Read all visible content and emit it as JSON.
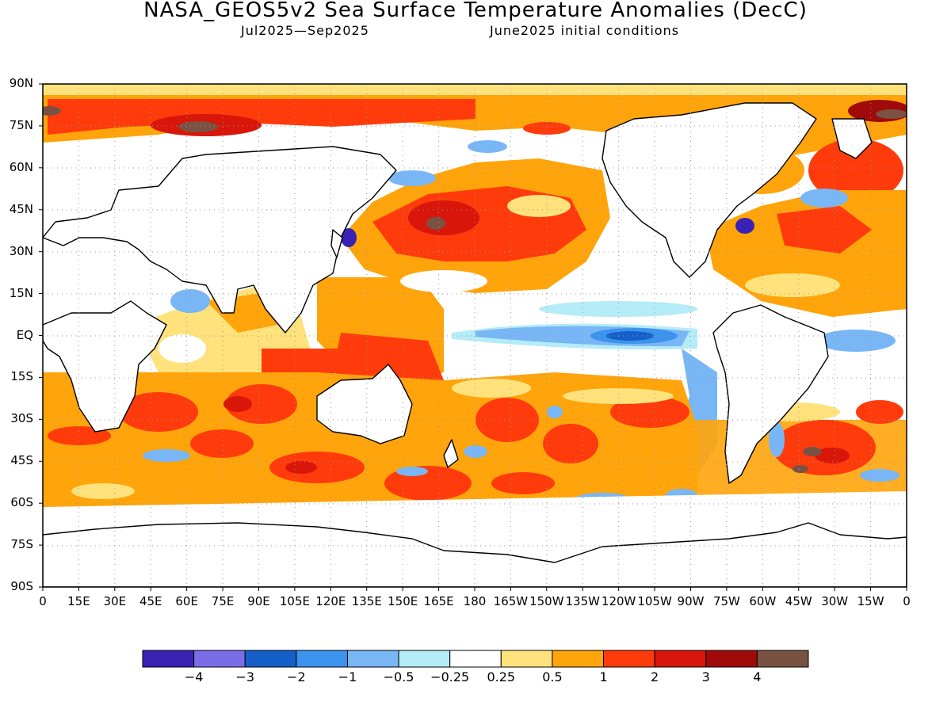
{
  "title": "NASA_GEOS5v2 Sea Surface Temperature Anomalies (DecC)",
  "subtitle_left": "Jul2025—Sep2025",
  "subtitle_right": "June2025 initial conditions",
  "lat_labels": [
    "90N",
    "75N",
    "60N",
    "45N",
    "30N",
    "15N",
    "EQ",
    "15S",
    "30S",
    "45S",
    "60S",
    "75S",
    "90S"
  ],
  "lon_labels": [
    "0",
    "15E",
    "30E",
    "45E",
    "60E",
    "75E",
    "90E",
    "105E",
    "120E",
    "135E",
    "150E",
    "165E",
    "180",
    "165W",
    "150W",
    "135W",
    "120W",
    "105W",
    "90W",
    "75W",
    "60W",
    "45W",
    "30W",
    "15W",
    "0"
  ],
  "colorbar": {
    "colors": [
      "#3a22b4",
      "#7b6de8",
      "#1560c8",
      "#3b93ee",
      "#78b6f6",
      "#b4ecf8",
      "#ffffff",
      "#ffe27c",
      "#ffa40a",
      "#ff3b0c",
      "#d8160a",
      "#a00a0a",
      "#7a5244"
    ],
    "labels": [
      "−4",
      "−3",
      "−2",
      "−1",
      "−0.5",
      "−0.25",
      "0.25",
      "0.5",
      "1",
      "2",
      "3",
      "4"
    ]
  },
  "chart_data": {
    "type": "heatmap",
    "title": "NASA_GEOS5v2 Sea Surface Temperature Anomalies (DecC)",
    "subtitle": "Jul2025—Sep2025    June2025 initial conditions",
    "xlabel": "",
    "ylabel": "",
    "xlim": [
      0,
      360
    ],
    "ylim": [
      -90,
      90
    ],
    "levels": [
      -4,
      -3,
      -2,
      -1,
      -0.5,
      -0.25,
      0.25,
      0.5,
      1,
      2,
      3,
      4
    ],
    "units": "DecC",
    "grid": true
  }
}
